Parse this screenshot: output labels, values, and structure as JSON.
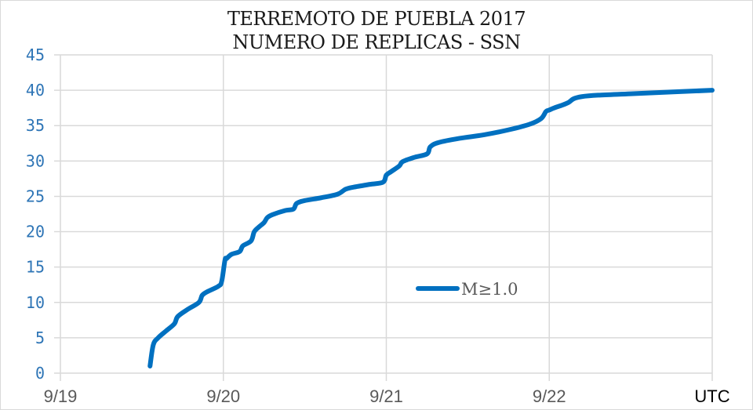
{
  "chart_data": {
    "type": "line",
    "title": "TERREMOTO DE PUEBLA 2017",
    "subtitle": "NUMERO DE REPLICAS - SSN",
    "xlabel": "UTC",
    "ylabel": "",
    "x_tick_labels": [
      "9/19",
      "9/20",
      "9/21",
      "9/22"
    ],
    "y_tick_labels": [
      "0",
      "5",
      "10",
      "15",
      "20",
      "25",
      "30",
      "35",
      "40",
      "45"
    ],
    "ylim": [
      0,
      45
    ],
    "xlim_days": [
      0,
      4
    ],
    "grid": true,
    "legend_position": "inside-center-right",
    "series": [
      {
        "name": "M≥1.0",
        "color": "#0070c0",
        "x_days_since_9_19": [
          0.55,
          0.57,
          0.6,
          0.65,
          0.7,
          0.72,
          0.78,
          0.85,
          0.87,
          0.9,
          0.97,
          0.99,
          1.01,
          1.02,
          1.05,
          1.1,
          1.12,
          1.17,
          1.19,
          1.22,
          1.25,
          1.27,
          1.3,
          1.38,
          1.43,
          1.45,
          1.5,
          1.6,
          1.7,
          1.75,
          1.8,
          1.9,
          1.98,
          2.0,
          2.03,
          2.08,
          2.1,
          2.17,
          2.25,
          2.27,
          2.32,
          2.45,
          2.6,
          2.75,
          2.88,
          2.95,
          2.98,
          3.0,
          3.03,
          3.08,
          3.12,
          3.15,
          3.2,
          3.3,
          3.5,
          3.8,
          4.0
        ],
        "y_values": [
          1,
          4,
          5,
          6,
          7,
          8,
          9,
          10,
          11,
          11.5,
          12.3,
          13,
          16,
          16.2,
          16.8,
          17.2,
          18,
          18.7,
          20,
          20.7,
          21.3,
          22,
          22.4,
          23,
          23.2,
          24,
          24.4,
          24.8,
          25.3,
          26,
          26.3,
          26.7,
          27,
          28,
          28.5,
          29.3,
          29.9,
          30.5,
          31,
          32,
          32.6,
          33.2,
          33.7,
          34.4,
          35.2,
          36,
          37,
          37.2,
          37.5,
          37.9,
          38.3,
          38.8,
          39.1,
          39.3,
          39.5,
          39.8,
          40
        ]
      }
    ]
  },
  "legend": {
    "label": "M≥1.0"
  },
  "axis": {
    "x_unit": "UTC"
  }
}
